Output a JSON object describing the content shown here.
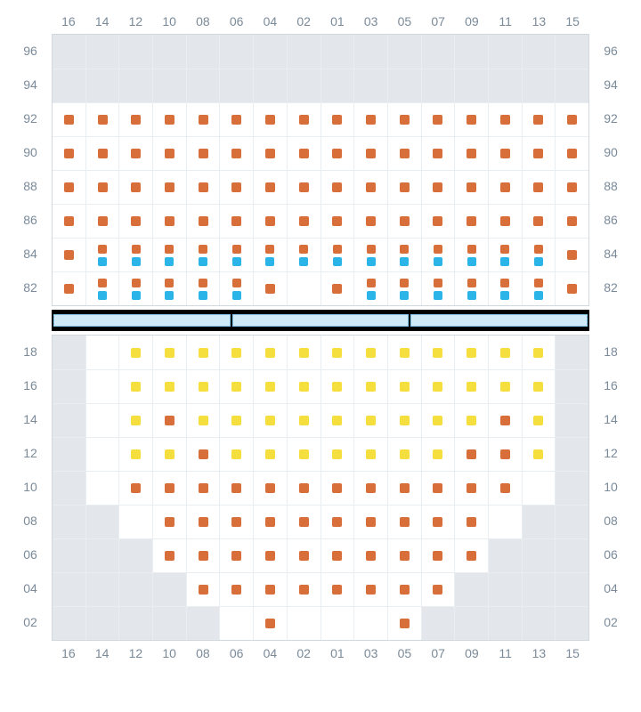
{
  "columns": [
    "16",
    "14",
    "12",
    "10",
    "08",
    "06",
    "04",
    "02",
    "01",
    "03",
    "05",
    "07",
    "09",
    "11",
    "13",
    "15"
  ],
  "upper_rows": [
    "96",
    "94",
    "92",
    "90",
    "88",
    "86",
    "84",
    "82"
  ],
  "lower_rows": [
    "18",
    "16",
    "14",
    "12",
    "10",
    "08",
    "06",
    "04",
    "02"
  ],
  "colors": {
    "orange": "#d86f3a",
    "blue": "#2bb4e8",
    "yellow": "#f5df3e",
    "unavailable": "#e3e7eb",
    "available": "#ffffff",
    "grid_line": "#e8eef2",
    "border": "#d0d7dd",
    "label": "#7a8a99",
    "divider_bg": "#000000",
    "divider_fill": "#cfe9f7",
    "divider_border": "#7fc3e8"
  },
  "cell_size": 38,
  "seat_size": 11,
  "upper_grid": [
    [
      "u",
      "u",
      "u",
      "u",
      "u",
      "u",
      "u",
      "u",
      "u",
      "u",
      "u",
      "u",
      "u",
      "u",
      "u",
      "u"
    ],
    [
      "u",
      "u",
      "u",
      "u",
      "u",
      "u",
      "u",
      "u",
      "u",
      "u",
      "u",
      "u",
      "u",
      "u",
      "u",
      "u"
    ],
    [
      "o",
      "o",
      "o",
      "o",
      "o",
      "o",
      "o",
      "o",
      "o",
      "o",
      "o",
      "o",
      "o",
      "o",
      "o",
      "o"
    ],
    [
      "o",
      "o",
      "o",
      "o",
      "o",
      "o",
      "o",
      "o",
      "o",
      "o",
      "o",
      "o",
      "o",
      "o",
      "o",
      "o"
    ],
    [
      "o",
      "o",
      "o",
      "o",
      "o",
      "o",
      "o",
      "o",
      "o",
      "o",
      "o",
      "o",
      "o",
      "o",
      "o",
      "o"
    ],
    [
      "o",
      "o",
      "o",
      "o",
      "o",
      "o",
      "o",
      "o",
      "o",
      "o",
      "o",
      "o",
      "o",
      "o",
      "o",
      "o"
    ],
    [
      "o",
      "ob",
      "ob",
      "ob",
      "ob",
      "ob",
      "ob",
      "ob",
      "ob",
      "ob",
      "ob",
      "ob",
      "ob",
      "ob",
      "ob",
      "o"
    ],
    [
      "o",
      "ob",
      "ob",
      "ob",
      "ob",
      "ob",
      "o",
      "e",
      "o",
      "ob",
      "ob",
      "ob",
      "ob",
      "ob",
      "ob",
      "o"
    ]
  ],
  "lower_grid": [
    [
      "u",
      "e",
      "y",
      "y",
      "y",
      "y",
      "y",
      "y",
      "y",
      "y",
      "y",
      "y",
      "y",
      "y",
      "y",
      "u"
    ],
    [
      "u",
      "e",
      "y",
      "y",
      "y",
      "y",
      "y",
      "y",
      "y",
      "y",
      "y",
      "y",
      "y",
      "y",
      "y",
      "u"
    ],
    [
      "u",
      "e",
      "y",
      "o",
      "y",
      "y",
      "y",
      "y",
      "y",
      "y",
      "y",
      "y",
      "y",
      "o",
      "y",
      "u"
    ],
    [
      "u",
      "e",
      "y",
      "y",
      "o",
      "y",
      "y",
      "y",
      "y",
      "y",
      "y",
      "y",
      "o",
      "o",
      "y",
      "u"
    ],
    [
      "u",
      "e",
      "o",
      "o",
      "o",
      "o",
      "o",
      "o",
      "o",
      "o",
      "o",
      "o",
      "o",
      "o",
      "e",
      "u"
    ],
    [
      "u",
      "u",
      "e",
      "o",
      "o",
      "o",
      "o",
      "o",
      "o",
      "o",
      "o",
      "o",
      "o",
      "e",
      "u",
      "u"
    ],
    [
      "u",
      "u",
      "u",
      "o",
      "o",
      "o",
      "o",
      "o",
      "o",
      "o",
      "o",
      "o",
      "o",
      "u",
      "u",
      "u"
    ],
    [
      "u",
      "u",
      "u",
      "u",
      "o",
      "o",
      "o",
      "o",
      "o",
      "o",
      "o",
      "o",
      "u",
      "u",
      "u",
      "u"
    ],
    [
      "u",
      "u",
      "u",
      "u",
      "u",
      "e",
      "o",
      "e",
      "e",
      "e",
      "o",
      "u",
      "u",
      "u",
      "u",
      "u"
    ]
  ],
  "divider_segments": 3
}
